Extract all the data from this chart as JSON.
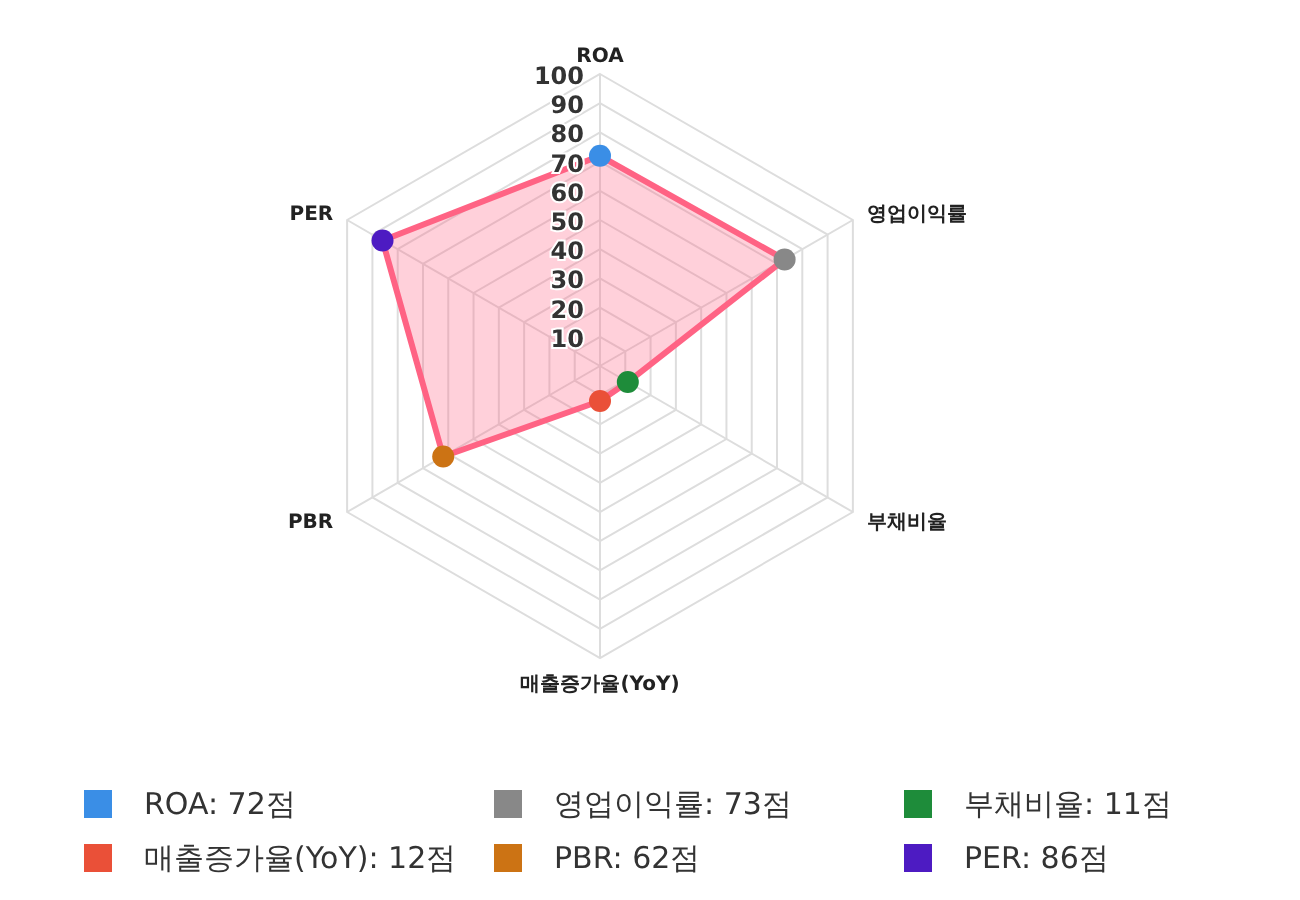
{
  "chart_data": {
    "type": "radar",
    "categories": [
      "ROA",
      "영업이익률",
      "부채비율",
      "매출증가율(YoY)",
      "PBR",
      "PER"
    ],
    "series": [
      {
        "color": "#ff6384",
        "values": [
          72,
          73,
          11,
          12,
          62,
          86
        ]
      }
    ],
    "colors": [
      "#3a8ee6",
      "#888888",
      "#1e8c3a",
      "#ea5038",
      "#cc7314",
      "#4d1bc2"
    ],
    "ylim": [
      0,
      100
    ],
    "yticks": [
      10,
      20,
      30,
      40,
      50,
      60,
      70,
      80,
      90,
      100
    ],
    "grid": true,
    "marker": "circle",
    "annotations": [
      "ROA: 72점",
      "영업이익률: 73점",
      "부채비율: 11점",
      "매출증가율(YoY): 12점",
      "PBR: 62점",
      "PER: 86점"
    ]
  }
}
